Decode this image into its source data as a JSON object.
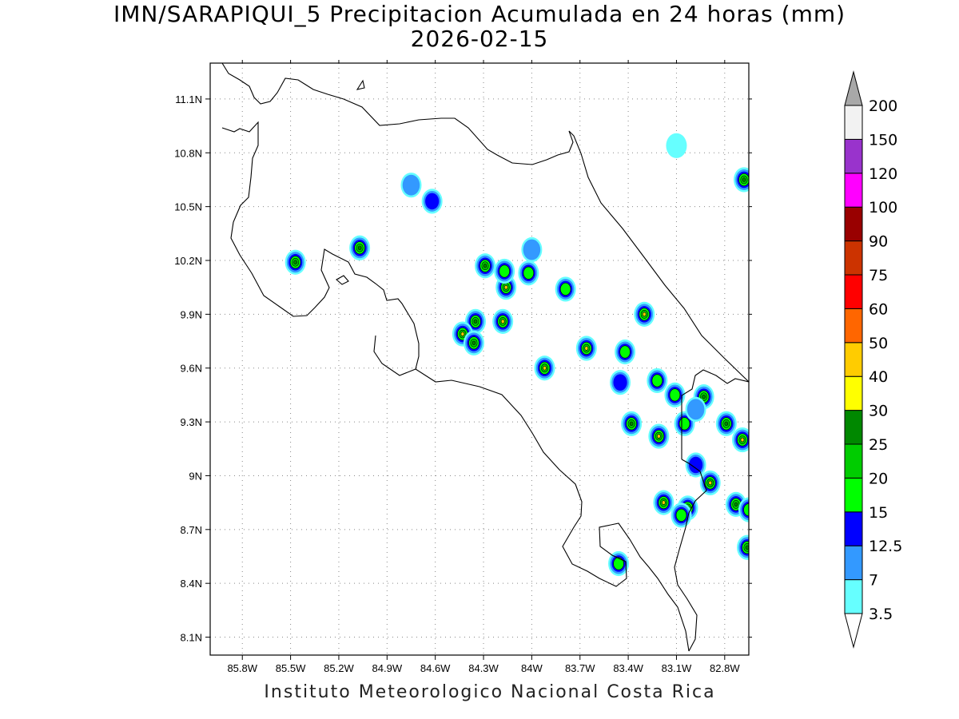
{
  "title": {
    "line1": "IMN/SARAPIQUI_5 Precipitacion Acumulada en 24 horas (mm)",
    "line2": "2026-02-15"
  },
  "footer": "Instituto Meteorologico Nacional Costa Rica",
  "map": {
    "lon_range": [
      -86.0,
      -82.65
    ],
    "lat_range": [
      8.0,
      11.3
    ],
    "gridlines": "dotted",
    "x_ticks": [
      {
        "lon": -85.8,
        "label": "85.8W"
      },
      {
        "lon": -85.5,
        "label": "85.5W"
      },
      {
        "lon": -85.2,
        "label": "85.2W"
      },
      {
        "lon": -84.9,
        "label": "84.9W"
      },
      {
        "lon": -84.6,
        "label": "84.6W"
      },
      {
        "lon": -84.3,
        "label": "84.3W"
      },
      {
        "lon": -84.0,
        "label": "84W"
      },
      {
        "lon": -83.7,
        "label": "83.7W"
      },
      {
        "lon": -83.4,
        "label": "83.4W"
      },
      {
        "lon": -83.1,
        "label": "83.1W"
      },
      {
        "lon": -82.8,
        "label": "82.8W"
      }
    ],
    "y_ticks": [
      {
        "lat": 11.1,
        "label": "11.1N"
      },
      {
        "lat": 10.8,
        "label": "10.8N"
      },
      {
        "lat": 10.5,
        "label": "10.5N"
      },
      {
        "lat": 10.2,
        "label": "10.2N"
      },
      {
        "lat": 9.9,
        "label": "9.9N"
      },
      {
        "lat": 9.6,
        "label": "9.6N"
      },
      {
        "lat": 9.3,
        "label": "9.3N"
      },
      {
        "lat": 9.0,
        "label": "9N"
      },
      {
        "lat": 8.7,
        "label": "8.7N"
      },
      {
        "lat": 8.4,
        "label": "8.4N"
      },
      {
        "lat": 8.1,
        "label": "8.1N"
      }
    ],
    "precip_cells": [
      {
        "lon": -84.75,
        "lat": 10.62,
        "peak": 7
      },
      {
        "lon": -84.62,
        "lat": 10.53,
        "peak": 12.5
      },
      {
        "lon": -85.47,
        "lat": 10.19,
        "peak": 25
      },
      {
        "lon": -85.07,
        "lat": 10.27,
        "peak": 25
      },
      {
        "lon": -84.29,
        "lat": 10.17,
        "peak": 25
      },
      {
        "lon": -84.16,
        "lat": 10.05,
        "peak": 40
      },
      {
        "lon": -84.02,
        "lat": 10.13,
        "peak": 15
      },
      {
        "lon": -84.17,
        "lat": 10.14,
        "peak": 15
      },
      {
        "lon": -83.79,
        "lat": 10.04,
        "peak": 15
      },
      {
        "lon": -84.18,
        "lat": 9.86,
        "peak": 40
      },
      {
        "lon": -84.35,
        "lat": 9.86,
        "peak": 25
      },
      {
        "lon": -84.43,
        "lat": 9.79,
        "peak": 40
      },
      {
        "lon": -84.36,
        "lat": 9.74,
        "peak": 25
      },
      {
        "lon": -83.92,
        "lat": 9.6,
        "peak": 40
      },
      {
        "lon": -83.66,
        "lat": 9.71,
        "peak": 40
      },
      {
        "lon": -83.3,
        "lat": 9.9,
        "peak": 40
      },
      {
        "lon": -83.22,
        "lat": 9.53,
        "peak": 15
      },
      {
        "lon": -83.11,
        "lat": 9.45,
        "peak": 15
      },
      {
        "lon": -82.93,
        "lat": 9.44,
        "peak": 25
      },
      {
        "lon": -83.38,
        "lat": 9.29,
        "peak": 25
      },
      {
        "lon": -83.21,
        "lat": 9.22,
        "peak": 40
      },
      {
        "lon": -83.05,
        "lat": 9.29,
        "peak": 15
      },
      {
        "lon": -82.79,
        "lat": 9.29,
        "peak": 25
      },
      {
        "lon": -82.69,
        "lat": 9.2,
        "peak": 40
      },
      {
        "lon": -82.89,
        "lat": 8.96,
        "peak": 40
      },
      {
        "lon": -83.18,
        "lat": 8.85,
        "peak": 40
      },
      {
        "lon": -83.03,
        "lat": 8.82,
        "peak": 40
      },
      {
        "lon": -83.07,
        "lat": 8.78,
        "peak": 15
      },
      {
        "lon": -82.73,
        "lat": 8.84,
        "peak": 25
      },
      {
        "lon": -82.65,
        "lat": 8.81,
        "peak": 15
      },
      {
        "lon": -82.66,
        "lat": 8.6,
        "peak": 25
      },
      {
        "lon": -83.46,
        "lat": 8.51,
        "peak": 15
      },
      {
        "lon": -82.68,
        "lat": 10.65,
        "peak": 25
      },
      {
        "lon": -84.0,
        "lat": 10.26,
        "peak": 7
      },
      {
        "lon": -83.1,
        "lat": 10.84,
        "peak": 3.5
      },
      {
        "lon": -83.45,
        "lat": 9.52,
        "peak": 12.5
      },
      {
        "lon": -83.42,
        "lat": 9.69,
        "peak": 15
      },
      {
        "lon": -82.98,
        "lat": 9.06,
        "peak": 12.5
      },
      {
        "lon": -82.98,
        "lat": 9.37,
        "peak": 7
      }
    ]
  },
  "colorbar": {
    "levels": [
      "3.5",
      "7",
      "12.5",
      "15",
      "20",
      "25",
      "30",
      "40",
      "50",
      "60",
      "75",
      "90",
      "100",
      "120",
      "150",
      "200"
    ],
    "colors": [
      "#ffffff",
      "#66ffff",
      "#3399ff",
      "#0000ff",
      "#00ff00",
      "#00cc00",
      "#008800",
      "#ffff00",
      "#ffcc00",
      "#ff6600",
      "#ff0000",
      "#cc3300",
      "#990000",
      "#ff00ff",
      "#9933cc",
      "#f2f2f2",
      "#a8a8a8"
    ]
  }
}
